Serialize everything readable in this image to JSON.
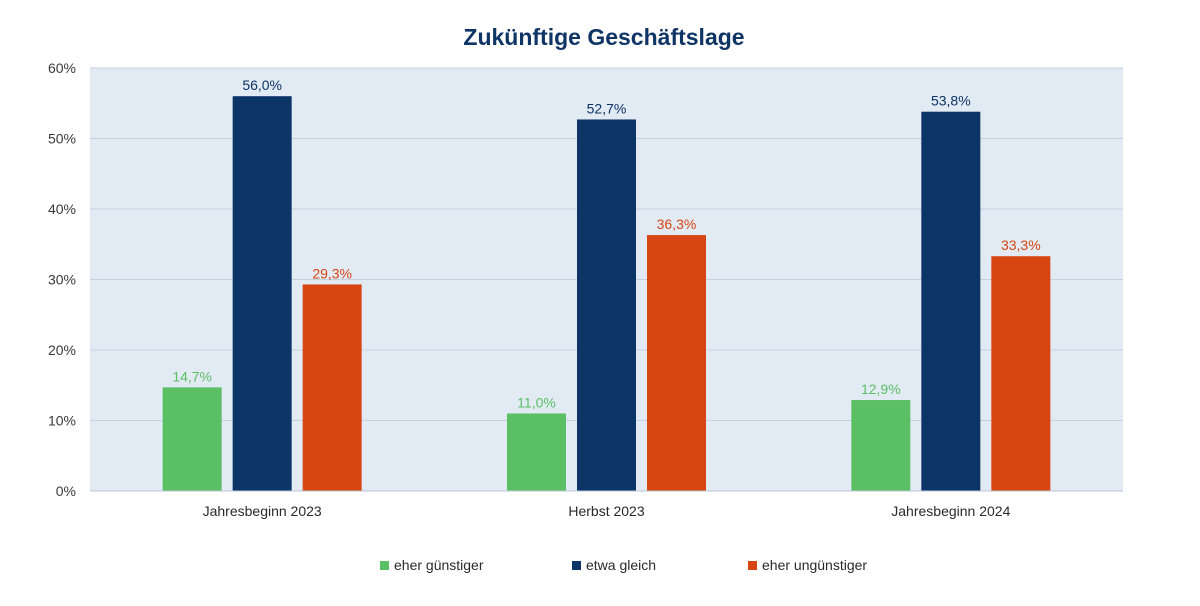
{
  "chart_data": {
    "type": "bar",
    "title": "Zukünftige Geschäftslage",
    "xlabel": "",
    "ylabel": "",
    "ylim": [
      0,
      60
    ],
    "yticks": [
      "0%",
      "10%",
      "20%",
      "30%",
      "40%",
      "50%",
      "60%"
    ],
    "grid": true,
    "legend_position": "bottom",
    "categories": [
      "Jahresbeginn 2023",
      "Herbst 2023",
      "Jahresbeginn 2024"
    ],
    "series": [
      {
        "name": "eher günstiger",
        "color": "#5bbf66",
        "values": [
          14.7,
          11.0,
          12.9
        ],
        "labels": [
          "14,7%",
          "11,0%",
          "12,9%"
        ]
      },
      {
        "name": "etwa gleich",
        "color": "#0d3466",
        "values": [
          56.0,
          52.7,
          53.8
        ],
        "labels": [
          "56,0%",
          "52,7%",
          "53,8%"
        ]
      },
      {
        "name": "eher ungünstiger",
        "color": "#d64512",
        "values": [
          29.3,
          36.3,
          33.3
        ],
        "labels": [
          "29,3%",
          "36,3%",
          "33,3%"
        ]
      }
    ],
    "colors": {
      "plot_background": "#e2eaf3",
      "gridline": "#c4d2e0"
    }
  }
}
